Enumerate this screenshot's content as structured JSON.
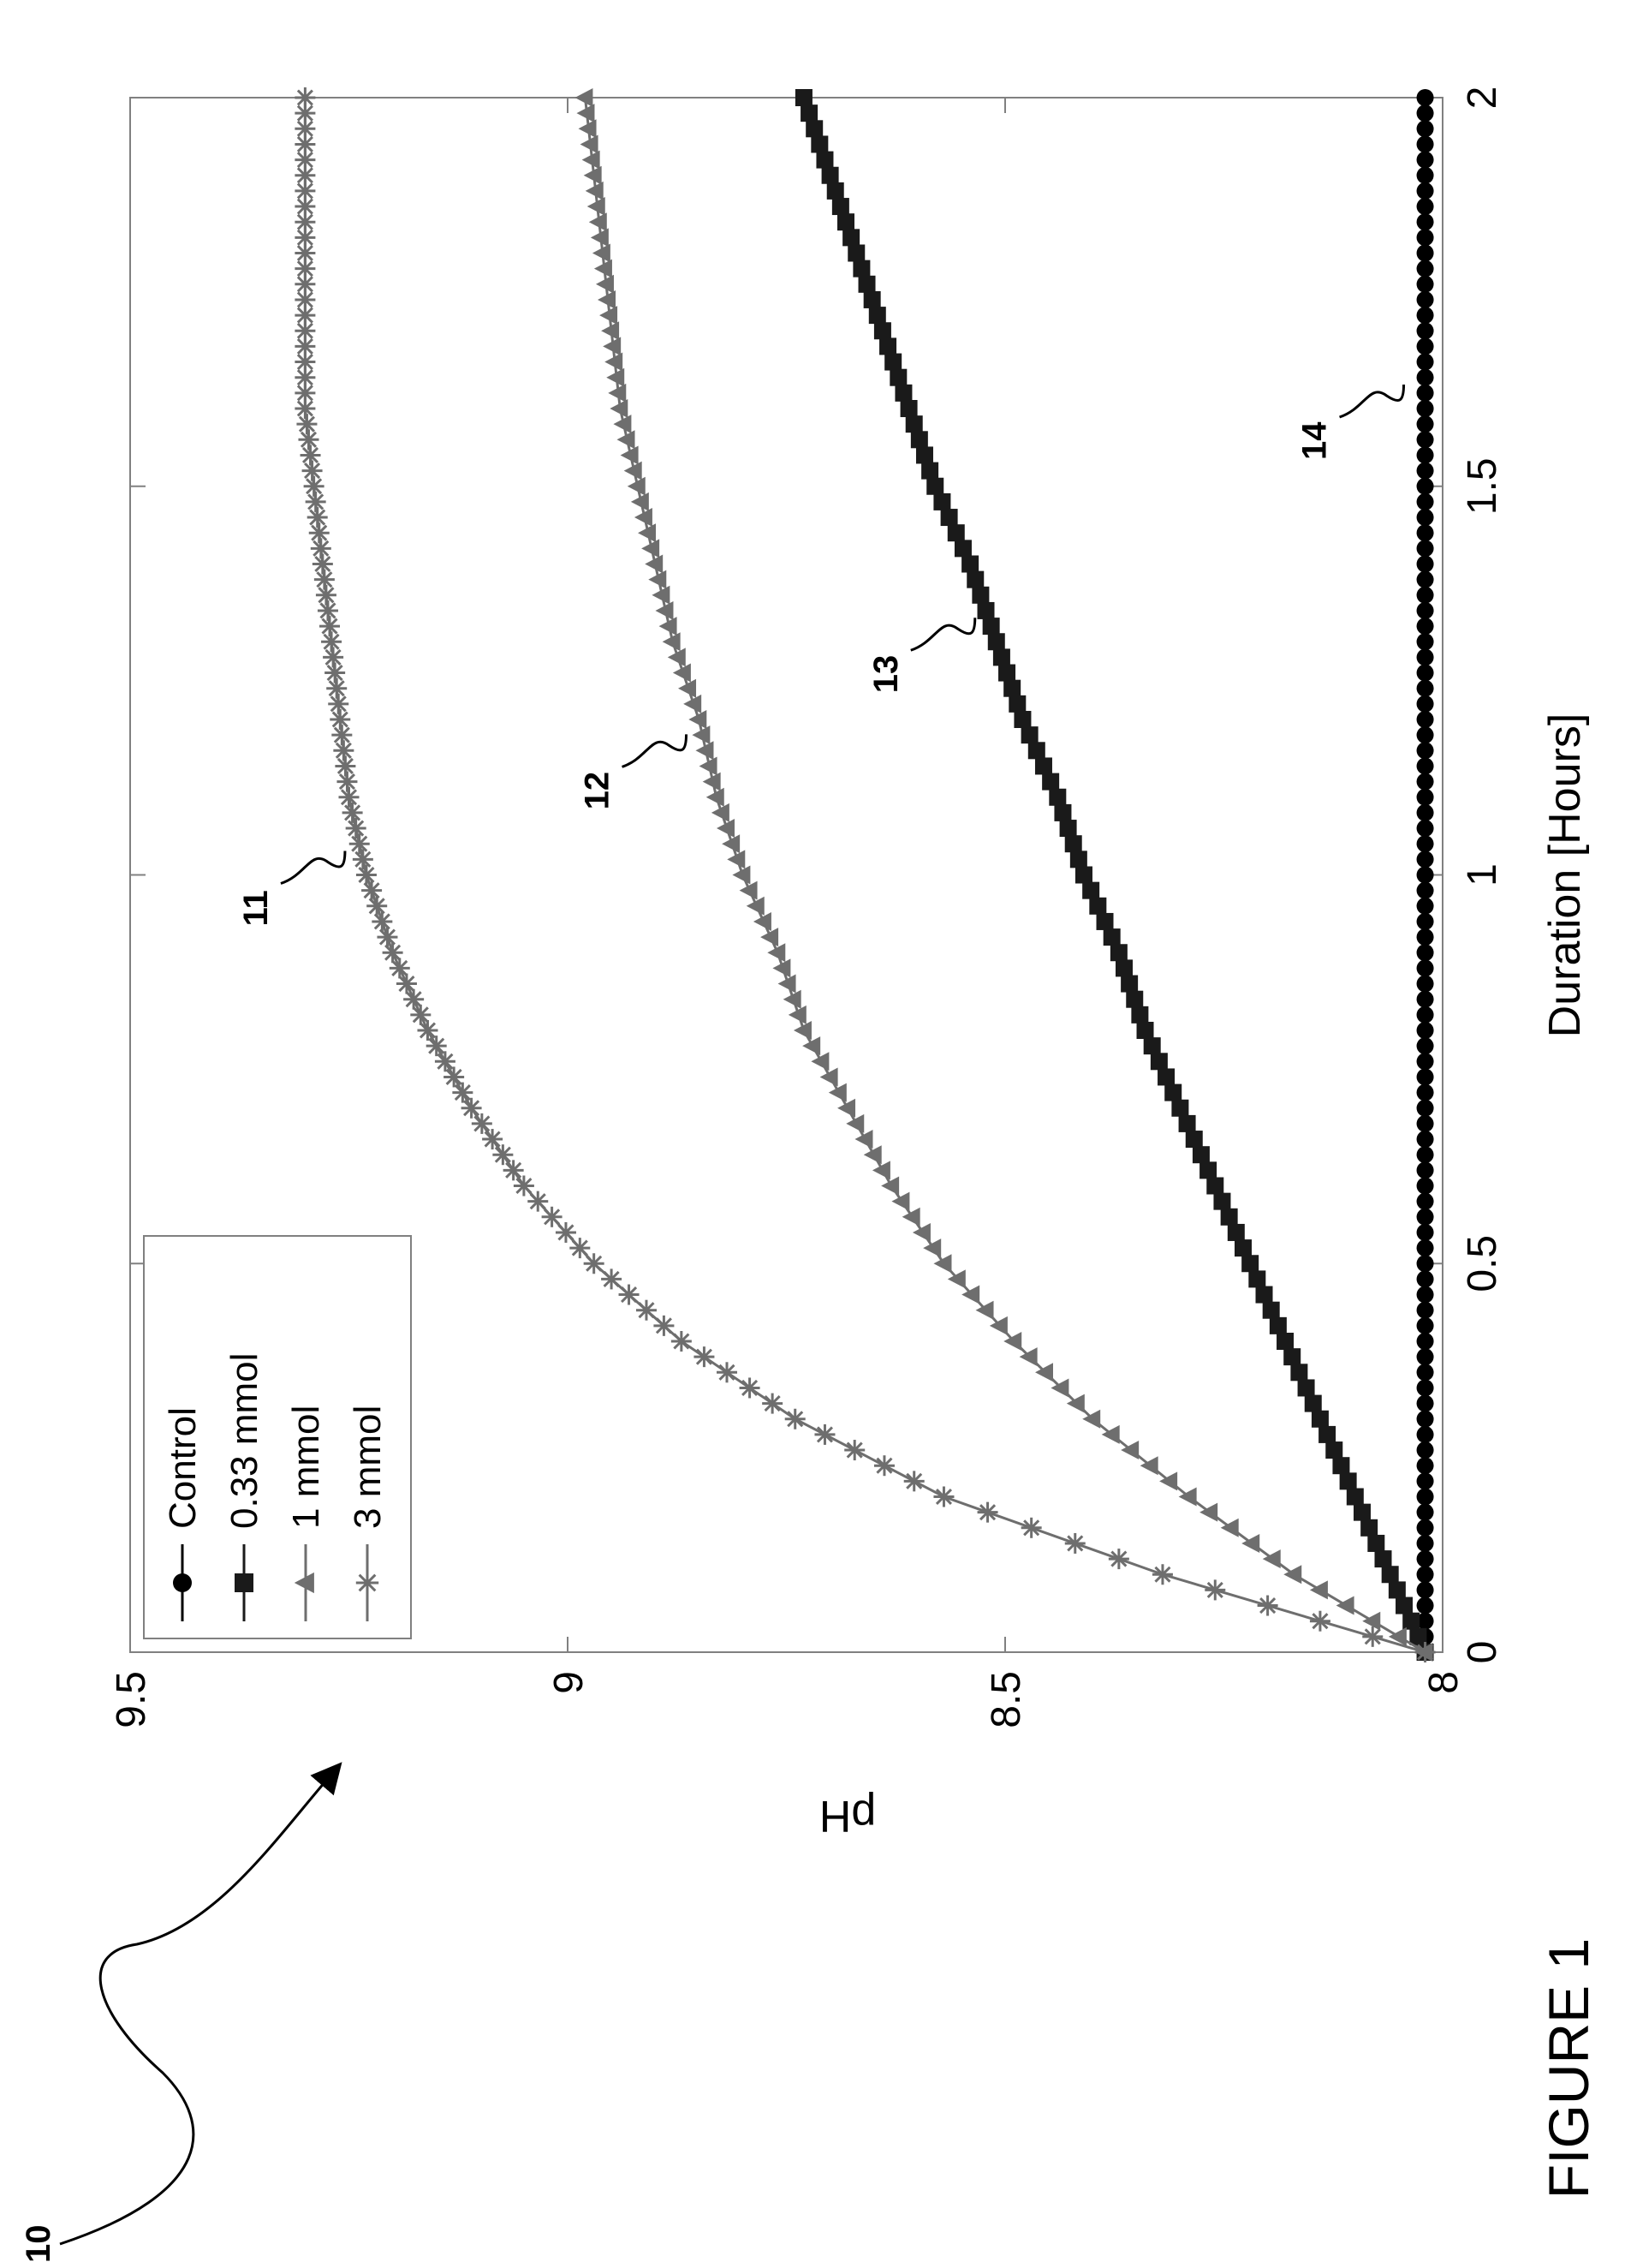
{
  "figure_caption": "FIGURE 1",
  "figure_ref": "10",
  "chart_data": {
    "type": "line",
    "xlabel": "Duration [Hours]",
    "ylabel": "pH",
    "xlim": [
      0,
      2
    ],
    "ylim": [
      8,
      9.5
    ],
    "xticks": [
      "0",
      "0.5",
      "1",
      "1.5",
      "2"
    ],
    "yticks": [
      "8",
      "8.5",
      "9",
      "9.5"
    ],
    "grid": false,
    "legend_position": "top-left",
    "x": [
      0,
      0.1,
      0.2,
      0.3,
      0.4,
      0.5,
      0.6,
      0.7,
      0.8,
      0.9,
      1.0,
      1.1,
      1.2,
      1.3,
      1.4,
      1.5,
      1.6,
      1.7,
      1.8,
      1.9,
      2.0
    ],
    "series": [
      {
        "name": "Control",
        "marker": "circle",
        "color": "#000000",
        "values": [
          8.02,
          8.02,
          8.02,
          8.02,
          8.02,
          8.02,
          8.02,
          8.02,
          8.02,
          8.02,
          8.02,
          8.02,
          8.02,
          8.02,
          8.02,
          8.02,
          8.02,
          8.02,
          8.02,
          8.02,
          8.02
        ]
      },
      {
        "name": "0.33 mmol",
        "marker": "square",
        "color": "#1a1a1a",
        "values": [
          8.02,
          8.06,
          8.1,
          8.14,
          8.18,
          8.22,
          8.26,
          8.3,
          8.34,
          8.37,
          8.41,
          8.44,
          8.48,
          8.51,
          8.54,
          8.58,
          8.61,
          8.64,
          8.67,
          8.7,
          8.73
        ]
      },
      {
        "name": "1 mmol",
        "marker": "triangle",
        "color": "#6e6e6e",
        "values": [
          8.02,
          8.17,
          8.29,
          8.4,
          8.49,
          8.57,
          8.63,
          8.68,
          8.73,
          8.76,
          8.8,
          8.83,
          8.85,
          8.88,
          8.9,
          8.92,
          8.94,
          8.95,
          8.96,
          8.97,
          8.98
        ]
      },
      {
        "name": "3 mmol",
        "marker": "star",
        "color": "#6e6e6e",
        "values": [
          8.02,
          8.32,
          8.57,
          8.74,
          8.87,
          8.97,
          9.05,
          9.11,
          9.16,
          9.2,
          9.23,
          9.25,
          9.26,
          9.27,
          9.28,
          9.29,
          9.3,
          9.3,
          9.3,
          9.3,
          9.3
        ]
      }
    ],
    "annotations": [
      {
        "label": "11",
        "target_series": "3 mmol",
        "x": 1.0
      },
      {
        "label": "12",
        "target_series": "1 mmol",
        "x": 1.15
      },
      {
        "label": "13",
        "target_series": "0.33 mmol",
        "x": 1.3
      },
      {
        "label": "14",
        "target_series": "Control",
        "x": 1.6
      }
    ]
  }
}
